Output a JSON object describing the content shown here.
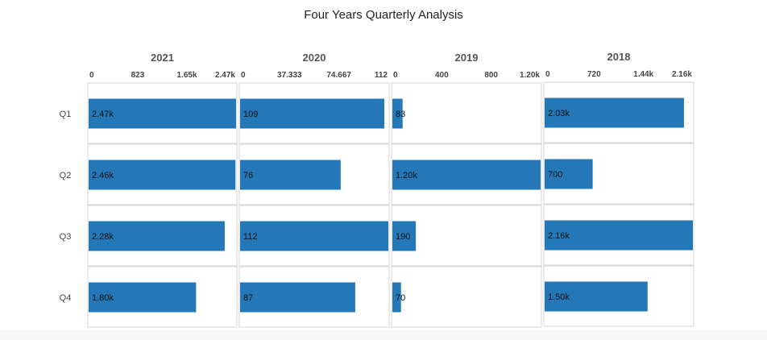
{
  "chart_data": {
    "type": "bar",
    "orientation": "horizontal",
    "title": "Four Years Quarterly Analysis",
    "categories": [
      "Q1",
      "Q2",
      "Q3",
      "Q4"
    ],
    "colors": {
      "bar": "#2478b7",
      "border": "#d6d6d6",
      "text": "#111111",
      "axis_text": "#444444"
    },
    "panels": [
      {
        "name": "2021",
        "xlim": [
          0,
          2470
        ],
        "ticks": [
          0,
          823,
          1647,
          2470
        ],
        "tick_labels": [
          "0",
          "823",
          "1.65k",
          "2.47k"
        ],
        "values": [
          2470,
          2460,
          2280,
          1800
        ],
        "data_labels": [
          "2.47k",
          "2.46k",
          "2.28k",
          "1.80k"
        ]
      },
      {
        "name": "2020",
        "xlim": [
          0,
          112
        ],
        "ticks": [
          0,
          37.333,
          74.667,
          112
        ],
        "tick_labels": [
          "0",
          "37.333",
          "74.667",
          "112"
        ],
        "values": [
          109,
          76,
          112,
          87
        ],
        "data_labels": [
          "109",
          "76",
          "112",
          "87"
        ]
      },
      {
        "name": "2019",
        "xlim": [
          0,
          1200
        ],
        "ticks": [
          0,
          400,
          800,
          1200
        ],
        "tick_labels": [
          "0",
          "400",
          "800",
          "1.20k"
        ],
        "values": [
          83,
          1200,
          190,
          70
        ],
        "data_labels": [
          "83",
          "1.20k",
          "190",
          "70"
        ]
      },
      {
        "name": "2018",
        "xlim": [
          0,
          2160
        ],
        "ticks": [
          0,
          720,
          1440,
          2160
        ],
        "tick_labels": [
          "0",
          "720",
          "1.44k",
          "2.16k"
        ],
        "values": [
          2030,
          700,
          2160,
          1500
        ],
        "data_labels": [
          "2.03k",
          "700",
          "2.16k",
          "1.50k"
        ]
      }
    ]
  }
}
